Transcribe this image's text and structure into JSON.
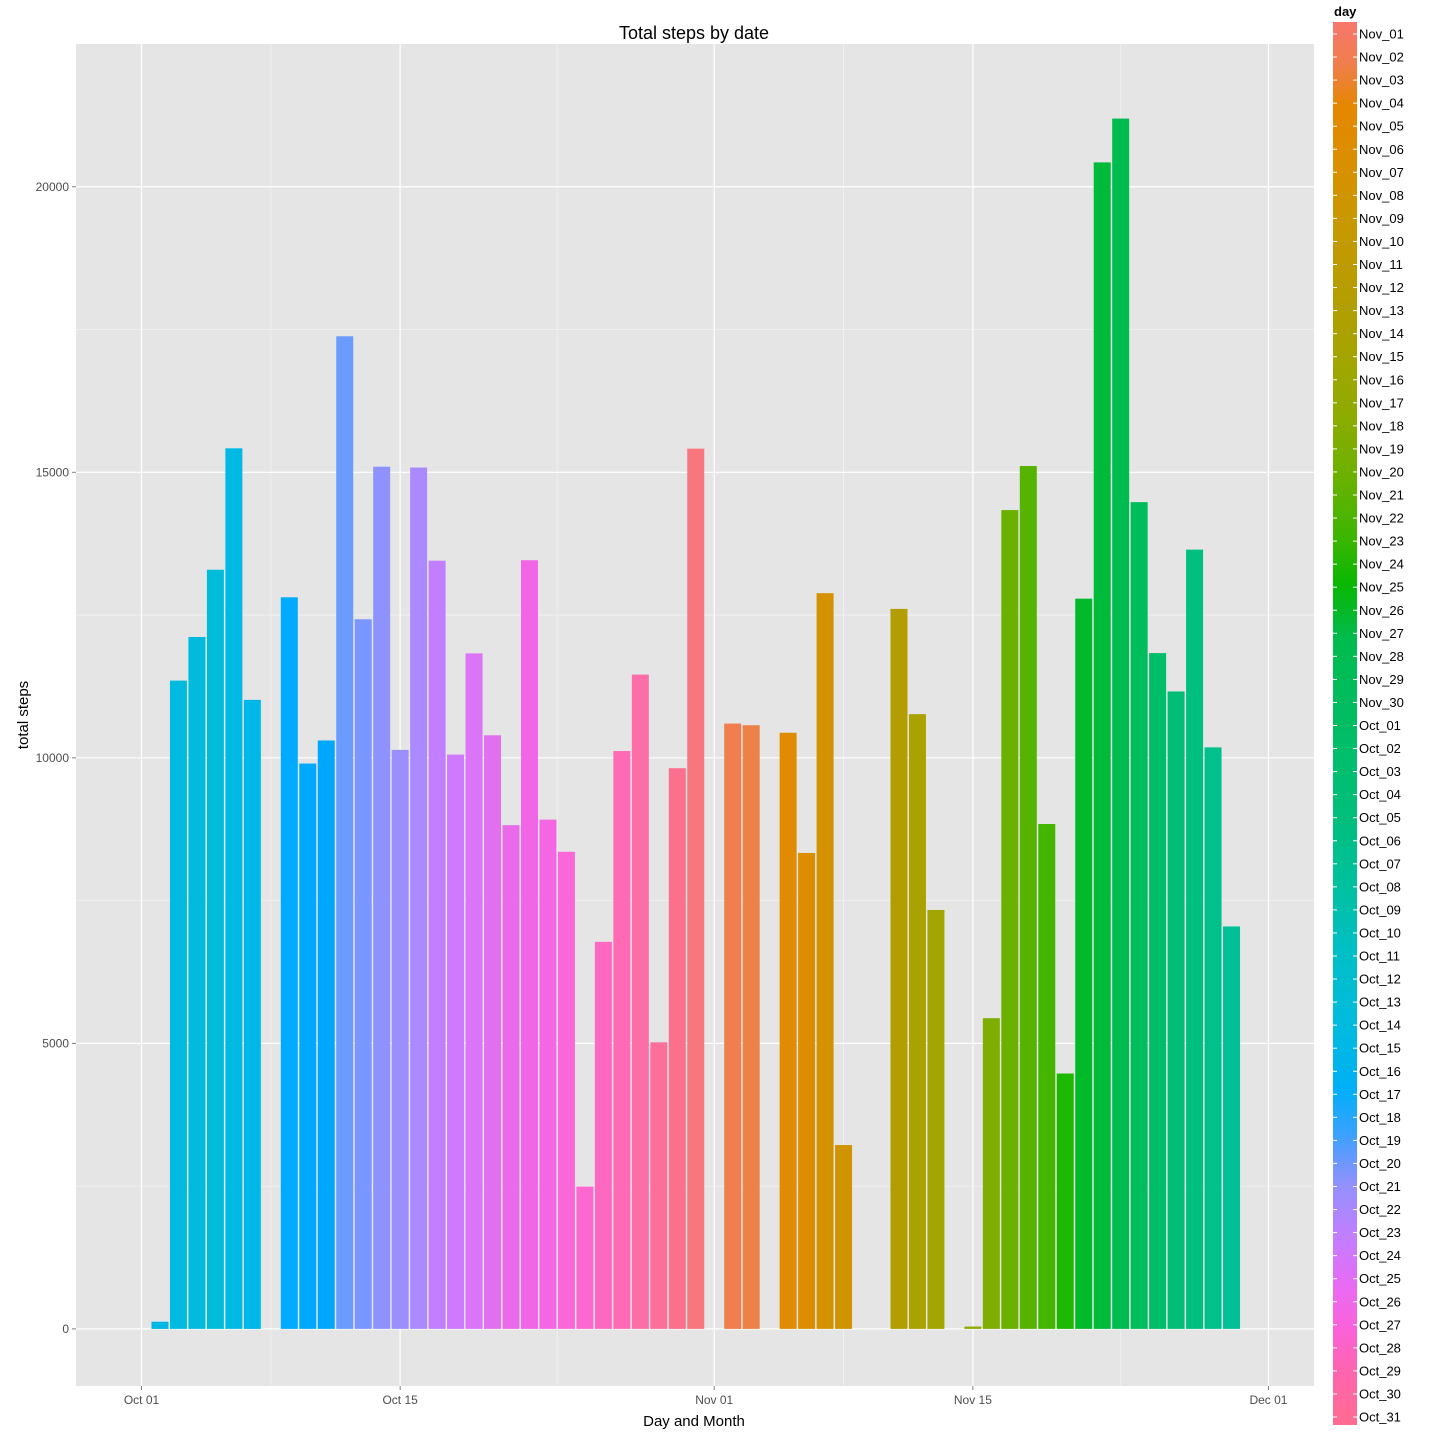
{
  "chart_data": {
    "type": "bar",
    "title": "Total steps by date",
    "xlabel": "Day and Month",
    "ylabel": "total steps",
    "x_ticks": [
      "Oct 01",
      "Oct 15",
      "Nov 01",
      "Nov 15",
      "Dec 01"
    ],
    "y_ticks": [
      "0",
      "5000",
      "10000",
      "15000",
      "20000"
    ],
    "ylim": [
      -1000,
      22500
    ],
    "grid": true,
    "legend_title": "day",
    "legend_position": "right",
    "legend_type": "colorbar",
    "legend_labels": [
      "Nov_01",
      "Nov_02",
      "Nov_03",
      "Nov_04",
      "Nov_05",
      "Nov_06",
      "Nov_07",
      "Nov_08",
      "Nov_09",
      "Nov_10",
      "Nov_11",
      "Nov_12",
      "Nov_13",
      "Nov_14",
      "Nov_15",
      "Nov_16",
      "Nov_17",
      "Nov_18",
      "Nov_19",
      "Nov_20",
      "Nov_21",
      "Nov_22",
      "Nov_23",
      "Nov_24",
      "Nov_25",
      "Nov_26",
      "Nov_27",
      "Nov_28",
      "Nov_29",
      "Nov_30",
      "Oct_01",
      "Oct_02",
      "Oct_03",
      "Oct_04",
      "Oct_05",
      "Oct_06",
      "Oct_07",
      "Oct_08",
      "Oct_09",
      "Oct_10",
      "Oct_11",
      "Oct_12",
      "Oct_13",
      "Oct_14",
      "Oct_15",
      "Oct_16",
      "Oct_17",
      "Oct_18",
      "Oct_19",
      "Oct_20",
      "Oct_21",
      "Oct_22",
      "Oct_23",
      "Oct_24",
      "Oct_25",
      "Oct_26",
      "Oct_27",
      "Oct_28",
      "Oct_29",
      "Oct_30",
      "Oct_31"
    ],
    "bars": [
      {
        "date": "Oct 02",
        "value": 126,
        "color": "#00B8E5"
      },
      {
        "date": "Oct 03",
        "value": 11352,
        "color": "#00BAE0"
      },
      {
        "date": "Oct 04",
        "value": 12116,
        "color": "#00BBDE"
      },
      {
        "date": "Oct 05",
        "value": 13294,
        "color": "#00BCDB"
      },
      {
        "date": "Oct 06",
        "value": 15420,
        "color": "#00BAE4"
      },
      {
        "date": "Oct 07",
        "value": 11015,
        "color": "#00B7E9"
      },
      {
        "date": "Oct 09",
        "value": 12811,
        "color": "#00AAFE"
      },
      {
        "date": "Oct 10",
        "value": 9900,
        "color": "#00A9FF"
      },
      {
        "date": "Oct 11",
        "value": 10304,
        "color": "#00A7FF"
      },
      {
        "date": "Oct 12",
        "value": 17382,
        "color": "#6B9BFF"
      },
      {
        "date": "Oct 13",
        "value": 12426,
        "color": "#7B97FF"
      },
      {
        "date": "Oct 14",
        "value": 15098,
        "color": "#8E92FF"
      },
      {
        "date": "Oct 15",
        "value": 10139,
        "color": "#9B8EFF"
      },
      {
        "date": "Oct 16",
        "value": 15084,
        "color": "#AB8AFF"
      },
      {
        "date": "Oct 17",
        "value": 13452,
        "color": "#C17EFF"
      },
      {
        "date": "Oct 18",
        "value": 10056,
        "color": "#CE79FF"
      },
      {
        "date": "Oct 19",
        "value": 11829,
        "color": "#D975F6"
      },
      {
        "date": "Oct 20",
        "value": 10395,
        "color": "#E170EF"
      },
      {
        "date": "Oct 21",
        "value": 8821,
        "color": "#E96BE9"
      },
      {
        "date": "Oct 22",
        "value": 13460,
        "color": "#F066E6"
      },
      {
        "date": "Oct 23",
        "value": 8918,
        "color": "#F567E2"
      },
      {
        "date": "Oct 24",
        "value": 8355,
        "color": "#F967D9"
      },
      {
        "date": "Oct 25",
        "value": 2492,
        "color": "#FC68CF"
      },
      {
        "date": "Oct 26",
        "value": 6778,
        "color": "#FD69C1"
      },
      {
        "date": "Oct 27",
        "value": 10119,
        "color": "#FE6BB4"
      },
      {
        "date": "Oct 28",
        "value": 11458,
        "color": "#FD6DA8"
      },
      {
        "date": "Oct 29",
        "value": 5018,
        "color": "#FC6F9B"
      },
      {
        "date": "Oct 30",
        "value": 9819,
        "color": "#FB718D"
      },
      {
        "date": "Oct 31",
        "value": 15414,
        "color": "#F8767D"
      },
      {
        "date": "Nov 02",
        "value": 10600,
        "color": "#F17E4E"
      },
      {
        "date": "Nov 03",
        "value": 10571,
        "color": "#EE8147"
      },
      {
        "date": "Nov 05",
        "value": 10439,
        "color": "#E08B00"
      },
      {
        "date": "Nov 06",
        "value": 8334,
        "color": "#DC8E00"
      },
      {
        "date": "Nov 07",
        "value": 12883,
        "color": "#D49200"
      },
      {
        "date": "Nov 08",
        "value": 3219,
        "color": "#CF9400"
      },
      {
        "date": "Nov 11",
        "value": 12608,
        "color": "#B29E00"
      },
      {
        "date": "Nov 12",
        "value": 10765,
        "color": "#AAA200"
      },
      {
        "date": "Nov 13",
        "value": 7336,
        "color": "#A3A500"
      },
      {
        "date": "Nov 15",
        "value": 41,
        "color": "#92A900"
      },
      {
        "date": "Nov 16",
        "value": 5441,
        "color": "#7FAD00"
      },
      {
        "date": "Nov 17",
        "value": 14339,
        "color": "#6AB100"
      },
      {
        "date": "Nov 18",
        "value": 15110,
        "color": "#56B300"
      },
      {
        "date": "Nov 19",
        "value": 8841,
        "color": "#44B600"
      },
      {
        "date": "Nov 20",
        "value": 4472,
        "color": "#1EB800"
      },
      {
        "date": "Nov 21",
        "value": 12787,
        "color": "#00BA2A"
      },
      {
        "date": "Nov 22",
        "value": 20427,
        "color": "#00BB3A"
      },
      {
        "date": "Nov 23",
        "value": 21194,
        "color": "#00BC50"
      },
      {
        "date": "Nov 24",
        "value": 14478,
        "color": "#00BD5C"
      },
      {
        "date": "Nov 25",
        "value": 11834,
        "color": "#00BE67"
      },
      {
        "date": "Nov 26",
        "value": 11162,
        "color": "#00BE75"
      },
      {
        "date": "Nov 27",
        "value": 13646,
        "color": "#00BF7F"
      },
      {
        "date": "Nov 28",
        "value": 10183,
        "color": "#00C08C"
      },
      {
        "date": "Nov 29",
        "value": 7047,
        "color": "#00C097"
      }
    ]
  }
}
